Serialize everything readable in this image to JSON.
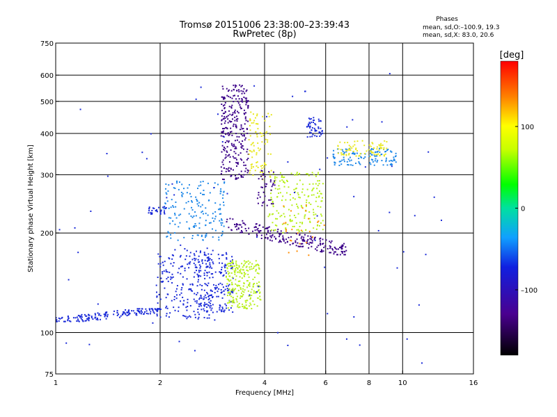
{
  "chart_data": {
    "type": "scatter",
    "title": "Tromsø 20151006 23:38:00–23:39:43",
    "subtitle": "RwPretec (8p)",
    "xlabel": "Frequency [MHz]",
    "ylabel": "Stationary phase Virtual Height [km]",
    "x_scale": "log",
    "y_scale": "log",
    "xlim": [
      1,
      16
    ],
    "ylim": [
      75,
      750
    ],
    "x_ticks": [
      1,
      2,
      4,
      6,
      8,
      10,
      16
    ],
    "y_ticks": [
      75,
      100,
      200,
      300,
      400,
      500,
      600,
      750
    ],
    "x_gridlines": [
      2,
      4,
      6,
      8,
      10
    ],
    "y_gridlines": [
      100,
      200,
      300,
      400,
      500,
      600
    ],
    "grid": true,
    "phases_box": {
      "heading": "Phases",
      "line_o": "mean, sd,O:–100.9, 19.3",
      "line_x": "mean, sd,X:  83.0, 20.6"
    },
    "colorbar": {
      "label": "[deg]",
      "range": [
        -180,
        180
      ],
      "ticks": [
        100,
        0,
        -100
      ],
      "tick_labels": [
        "100",
        "0",
        "–100"
      ]
    },
    "series_colors": {
      "violet": "#3a0088",
      "blue": "#1a2ad8",
      "lightblue": "#1f88e8",
      "yellowgreen": "#b8f01c",
      "yellow": "#e8e820",
      "orange": "#ff8c00",
      "red": "#e01818"
    },
    "clusters": [
      {
        "series": "blue",
        "phase": -110,
        "x": [
          1.0,
          2.0
        ],
        "y": [
          108,
          118
        ],
        "density": 160,
        "shape": "line"
      },
      {
        "series": "blue",
        "phase": -100,
        "x": [
          1.95,
          2.85
        ],
        "y": [
          110,
          180
        ],
        "density": 210
      },
      {
        "series": "lightblue",
        "phase": -60,
        "x": [
          2.05,
          3.1
        ],
        "y": [
          190,
          290
        ],
        "density": 170
      },
      {
        "series": "blue",
        "phase": -95,
        "x": [
          1.85,
          2.1
        ],
        "y": [
          228,
          240
        ],
        "density": 30
      },
      {
        "series": "blue",
        "phase": -90,
        "x": [
          2.5,
          3.25
        ],
        "y": [
          115,
          175
        ],
        "density": 180
      },
      {
        "series": "violet",
        "phase": -135,
        "x": [
          3.0,
          3.6
        ],
        "y": [
          290,
          560
        ],
        "density": 280
      },
      {
        "series": "violet",
        "phase": -130,
        "x": [
          3.1,
          6.9
        ],
        "y": [
          172,
          225
        ],
        "density": 210,
        "shape": "trace"
      },
      {
        "series": "yellowgreen",
        "phase": 80,
        "x": [
          3.1,
          3.9
        ],
        "y": [
          118,
          165
        ],
        "density": 230
      },
      {
        "series": "yellowgreen",
        "phase": 85,
        "x": [
          4.1,
          5.9
        ],
        "y": [
          200,
          305
        ],
        "density": 190
      },
      {
        "series": "yellow",
        "phase": 100,
        "x": [
          3.6,
          4.2
        ],
        "y": [
          290,
          470
        ],
        "density": 90
      },
      {
        "series": "lightblue",
        "phase": -60,
        "x": [
          6.3,
          9.6
        ],
        "y": [
          320,
          360
        ],
        "density": 120
      },
      {
        "series": "yellow",
        "phase": 110,
        "x": [
          6.5,
          9.0
        ],
        "y": [
          340,
          380
        ],
        "density": 80
      },
      {
        "series": "blue",
        "phase": -90,
        "x": [
          5.3,
          5.9
        ],
        "y": [
          390,
          450
        ],
        "density": 50
      },
      {
        "series": "orange",
        "phase": 140,
        "x": [
          4.5,
          6.0
        ],
        "y": [
          170,
          250
        ],
        "density": 25
      },
      {
        "series": "violet",
        "phase": -125,
        "x": [
          3.8,
          4.3
        ],
        "y": [
          240,
          310
        ],
        "density": 40
      },
      {
        "series": "blue",
        "phase": -100,
        "x": [
          1.0,
          13.0
        ],
        "y": [
          80,
          620
        ],
        "density": 70,
        "shape": "sparse"
      }
    ]
  }
}
